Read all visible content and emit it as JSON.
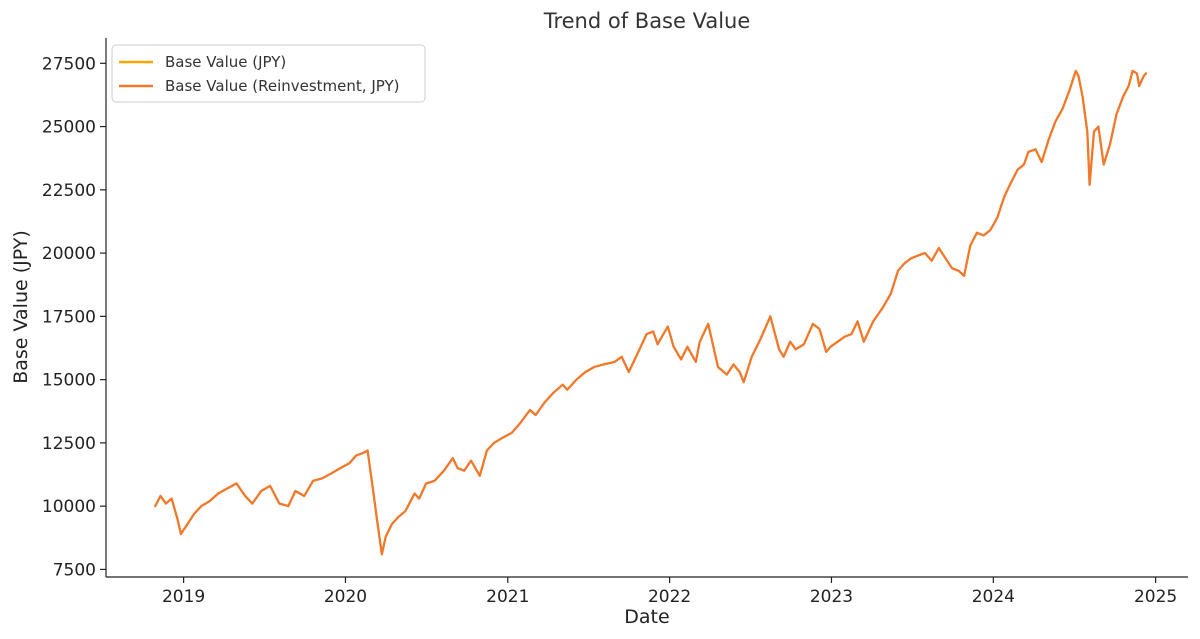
{
  "chart_data": {
    "type": "line",
    "title": "Trend of Base Value",
    "xlabel": "Date",
    "ylabel": "Base Value (JPY)",
    "xlim": [
      "2018-07-10",
      "2025-03-15"
    ],
    "ylim": [
      7200,
      28500
    ],
    "x_ticks": [
      "2019",
      "2020",
      "2021",
      "2022",
      "2023",
      "2024",
      "2025"
    ],
    "y_ticks": [
      "7500",
      "10000",
      "12500",
      "15000",
      "17500",
      "20000",
      "22500",
      "25000",
      "27500"
    ],
    "grid": false,
    "legend_position": "top-left",
    "series": [
      {
        "name": "Base Value (JPY)",
        "color": "#ffa500",
        "x": [
          "2018-10-29",
          "2018-11-10",
          "2018-11-22",
          "2018-12-05",
          "2018-12-18",
          "2018-12-26",
          "2019-01-10",
          "2019-01-25",
          "2019-02-10",
          "2019-03-01",
          "2019-03-20",
          "2019-04-10",
          "2019-04-30",
          "2019-05-20",
          "2019-06-05",
          "2019-06-25",
          "2019-07-15",
          "2019-08-05",
          "2019-08-25",
          "2019-09-10",
          "2019-09-30",
          "2019-10-20",
          "2019-11-10",
          "2019-12-01",
          "2019-12-20",
          "2020-01-10",
          "2020-01-25",
          "2020-02-10",
          "2020-02-20",
          "2020-03-02",
          "2020-03-12",
          "2020-03-23",
          "2020-04-01",
          "2020-04-15",
          "2020-05-01",
          "2020-05-15",
          "2020-06-05",
          "2020-06-15",
          "2020-07-01",
          "2020-07-20",
          "2020-08-10",
          "2020-08-30",
          "2020-09-10",
          "2020-09-25",
          "2020-10-10",
          "2020-10-30",
          "2020-11-15",
          "2020-12-01",
          "2020-12-20",
          "2021-01-10",
          "2021-01-30",
          "2021-02-20",
          "2021-03-05",
          "2021-03-25",
          "2021-04-15",
          "2021-05-05",
          "2021-05-15",
          "2021-06-05",
          "2021-06-25",
          "2021-07-15",
          "2021-08-05",
          "2021-08-30",
          "2021-09-15",
          "2021-10-01",
          "2021-10-20",
          "2021-11-10",
          "2021-11-25",
          "2021-12-05",
          "2021-12-28",
          "2022-01-10",
          "2022-01-27",
          "2022-02-10",
          "2022-03-01",
          "2022-03-10",
          "2022-03-29",
          "2022-04-20",
          "2022-05-10",
          "2022-05-25",
          "2022-06-08",
          "2022-06-17",
          "2022-07-05",
          "2022-07-25",
          "2022-08-16",
          "2022-09-05",
          "2022-09-15",
          "2022-09-30",
          "2022-10-12",
          "2022-10-31",
          "2022-11-20",
          "2022-12-05",
          "2022-12-20",
          "2022-12-30",
          "2023-01-15",
          "2023-01-31",
          "2023-02-15",
          "2023-03-01",
          "2023-03-15",
          "2023-04-05",
          "2023-04-25",
          "2023-05-15",
          "2023-05-31",
          "2023-06-15",
          "2023-06-30",
          "2023-07-15",
          "2023-07-31",
          "2023-08-15",
          "2023-08-31",
          "2023-09-15",
          "2023-09-30",
          "2023-10-15",
          "2023-10-27",
          "2023-11-10",
          "2023-11-25",
          "2023-12-10",
          "2023-12-25",
          "2024-01-10",
          "2024-01-25",
          "2024-02-10",
          "2024-02-25",
          "2024-03-10",
          "2024-03-20",
          "2024-04-05",
          "2024-04-19",
          "2024-05-05",
          "2024-05-20",
          "2024-06-05",
          "2024-06-20",
          "2024-07-05",
          "2024-07-11",
          "2024-07-20",
          "2024-07-31",
          "2024-08-05",
          "2024-08-15",
          "2024-08-25",
          "2024-09-06",
          "2024-09-20",
          "2024-10-05",
          "2024-10-20",
          "2024-11-01",
          "2024-11-10",
          "2024-11-20",
          "2024-11-25",
          "2024-12-05",
          "2024-12-10"
        ],
        "values": [
          10000,
          10400,
          10100,
          10300,
          9500,
          8900,
          9300,
          9700,
          10000,
          10200,
          10500,
          10700,
          10900,
          10400,
          10100,
          10600,
          10800,
          10100,
          10000,
          10600,
          10400,
          11000,
          11100,
          11300,
          11500,
          11700,
          12000,
          12100,
          12200,
          10800,
          9500,
          8100,
          8800,
          9300,
          9600,
          9800,
          10500,
          10300,
          10900,
          11000,
          11400,
          11900,
          11500,
          11400,
          11800,
          11200,
          12200,
          12500,
          12700,
          12900,
          13300,
          13800,
          13600,
          14100,
          14500,
          14800,
          14600,
          15000,
          15300,
          15500,
          15600,
          15700,
          15900,
          15300,
          16000,
          16800,
          16900,
          16400,
          17100,
          16300,
          15800,
          16300,
          15700,
          16500,
          17200,
          15500,
          15200,
          15600,
          15300,
          14900,
          15900,
          16600,
          17500,
          16200,
          15900,
          16500,
          16200,
          16400,
          17200,
          17000,
          16100,
          16300,
          16500,
          16700,
          16800,
          17300,
          16500,
          17300,
          17800,
          18400,
          19300,
          19600,
          19800,
          19900,
          20000,
          19700,
          20200,
          19800,
          19400,
          19300,
          19100,
          20300,
          20800,
          20700,
          20900,
          21400,
          22200,
          22800,
          23300,
          23500,
          24000,
          24100,
          23600,
          24500,
          25200,
          25700,
          26400,
          27200,
          27000,
          26200,
          24800,
          22700,
          24800,
          25000,
          23500,
          24300,
          25500,
          26200,
          26600,
          27200,
          27100,
          26600,
          27000,
          27100
        ]
      },
      {
        "name": "Base Value (Reinvestment, JPY)",
        "color": "#f07830",
        "x": [
          "2018-10-29",
          "2018-11-10",
          "2018-11-22",
          "2018-12-05",
          "2018-12-18",
          "2018-12-26",
          "2019-01-10",
          "2019-01-25",
          "2019-02-10",
          "2019-03-01",
          "2019-03-20",
          "2019-04-10",
          "2019-04-30",
          "2019-05-20",
          "2019-06-05",
          "2019-06-25",
          "2019-07-15",
          "2019-08-05",
          "2019-08-25",
          "2019-09-10",
          "2019-09-30",
          "2019-10-20",
          "2019-11-10",
          "2019-12-01",
          "2019-12-20",
          "2020-01-10",
          "2020-01-25",
          "2020-02-10",
          "2020-02-20",
          "2020-03-02",
          "2020-03-12",
          "2020-03-23",
          "2020-04-01",
          "2020-04-15",
          "2020-05-01",
          "2020-05-15",
          "2020-06-05",
          "2020-06-15",
          "2020-07-01",
          "2020-07-20",
          "2020-08-10",
          "2020-08-30",
          "2020-09-10",
          "2020-09-25",
          "2020-10-10",
          "2020-10-30",
          "2020-11-15",
          "2020-12-01",
          "2020-12-20",
          "2021-01-10",
          "2021-01-30",
          "2021-02-20",
          "2021-03-05",
          "2021-03-25",
          "2021-04-15",
          "2021-05-05",
          "2021-05-15",
          "2021-06-05",
          "2021-06-25",
          "2021-07-15",
          "2021-08-05",
          "2021-08-30",
          "2021-09-15",
          "2021-10-01",
          "2021-10-20",
          "2021-11-10",
          "2021-11-25",
          "2021-12-05",
          "2021-12-28",
          "2022-01-10",
          "2022-01-27",
          "2022-02-10",
          "2022-03-01",
          "2022-03-10",
          "2022-03-29",
          "2022-04-20",
          "2022-05-10",
          "2022-05-25",
          "2022-06-08",
          "2022-06-17",
          "2022-07-05",
          "2022-07-25",
          "2022-08-16",
          "2022-09-05",
          "2022-09-15",
          "2022-09-30",
          "2022-10-12",
          "2022-10-31",
          "2022-11-20",
          "2022-12-05",
          "2022-12-20",
          "2022-12-30",
          "2023-01-15",
          "2023-01-31",
          "2023-02-15",
          "2023-03-01",
          "2023-03-15",
          "2023-04-05",
          "2023-04-25",
          "2023-05-15",
          "2023-05-31",
          "2023-06-15",
          "2023-06-30",
          "2023-07-15",
          "2023-07-31",
          "2023-08-15",
          "2023-08-31",
          "2023-09-15",
          "2023-09-30",
          "2023-10-15",
          "2023-10-27",
          "2023-11-10",
          "2023-11-25",
          "2023-12-10",
          "2023-12-25",
          "2024-01-10",
          "2024-01-25",
          "2024-02-10",
          "2024-02-25",
          "2024-03-10",
          "2024-03-20",
          "2024-04-05",
          "2024-04-19",
          "2024-05-05",
          "2024-05-20",
          "2024-06-05",
          "2024-06-20",
          "2024-07-05",
          "2024-07-11",
          "2024-07-20",
          "2024-07-31",
          "2024-08-05",
          "2024-08-15",
          "2024-08-25",
          "2024-09-06",
          "2024-09-20",
          "2024-10-05",
          "2024-10-20",
          "2024-11-01",
          "2024-11-10",
          "2024-11-20",
          "2024-11-25",
          "2024-12-05",
          "2024-12-10"
        ],
        "values": [
          10000,
          10400,
          10100,
          10300,
          9500,
          8900,
          9300,
          9700,
          10000,
          10200,
          10500,
          10700,
          10900,
          10400,
          10100,
          10600,
          10800,
          10100,
          10000,
          10600,
          10400,
          11000,
          11100,
          11300,
          11500,
          11700,
          12000,
          12100,
          12200,
          10800,
          9500,
          8100,
          8800,
          9300,
          9600,
          9800,
          10500,
          10300,
          10900,
          11000,
          11400,
          11900,
          11500,
          11400,
          11800,
          11200,
          12200,
          12500,
          12700,
          12900,
          13300,
          13800,
          13600,
          14100,
          14500,
          14800,
          14600,
          15000,
          15300,
          15500,
          15600,
          15700,
          15900,
          15300,
          16000,
          16800,
          16900,
          16400,
          17100,
          16300,
          15800,
          16300,
          15700,
          16500,
          17200,
          15500,
          15200,
          15600,
          15300,
          14900,
          15900,
          16600,
          17500,
          16200,
          15900,
          16500,
          16200,
          16400,
          17200,
          17000,
          16100,
          16300,
          16500,
          16700,
          16800,
          17300,
          16500,
          17300,
          17800,
          18400,
          19300,
          19600,
          19800,
          19900,
          20000,
          19700,
          20200,
          19800,
          19400,
          19300,
          19100,
          20300,
          20800,
          20700,
          20900,
          21400,
          22200,
          22800,
          23300,
          23500,
          24000,
          24100,
          23600,
          24500,
          25200,
          25700,
          26400,
          27200,
          27000,
          26200,
          24800,
          22700,
          24800,
          25000,
          23500,
          24300,
          25500,
          26200,
          26600,
          27200,
          27100,
          26600,
          27000,
          27100
        ]
      }
    ]
  }
}
